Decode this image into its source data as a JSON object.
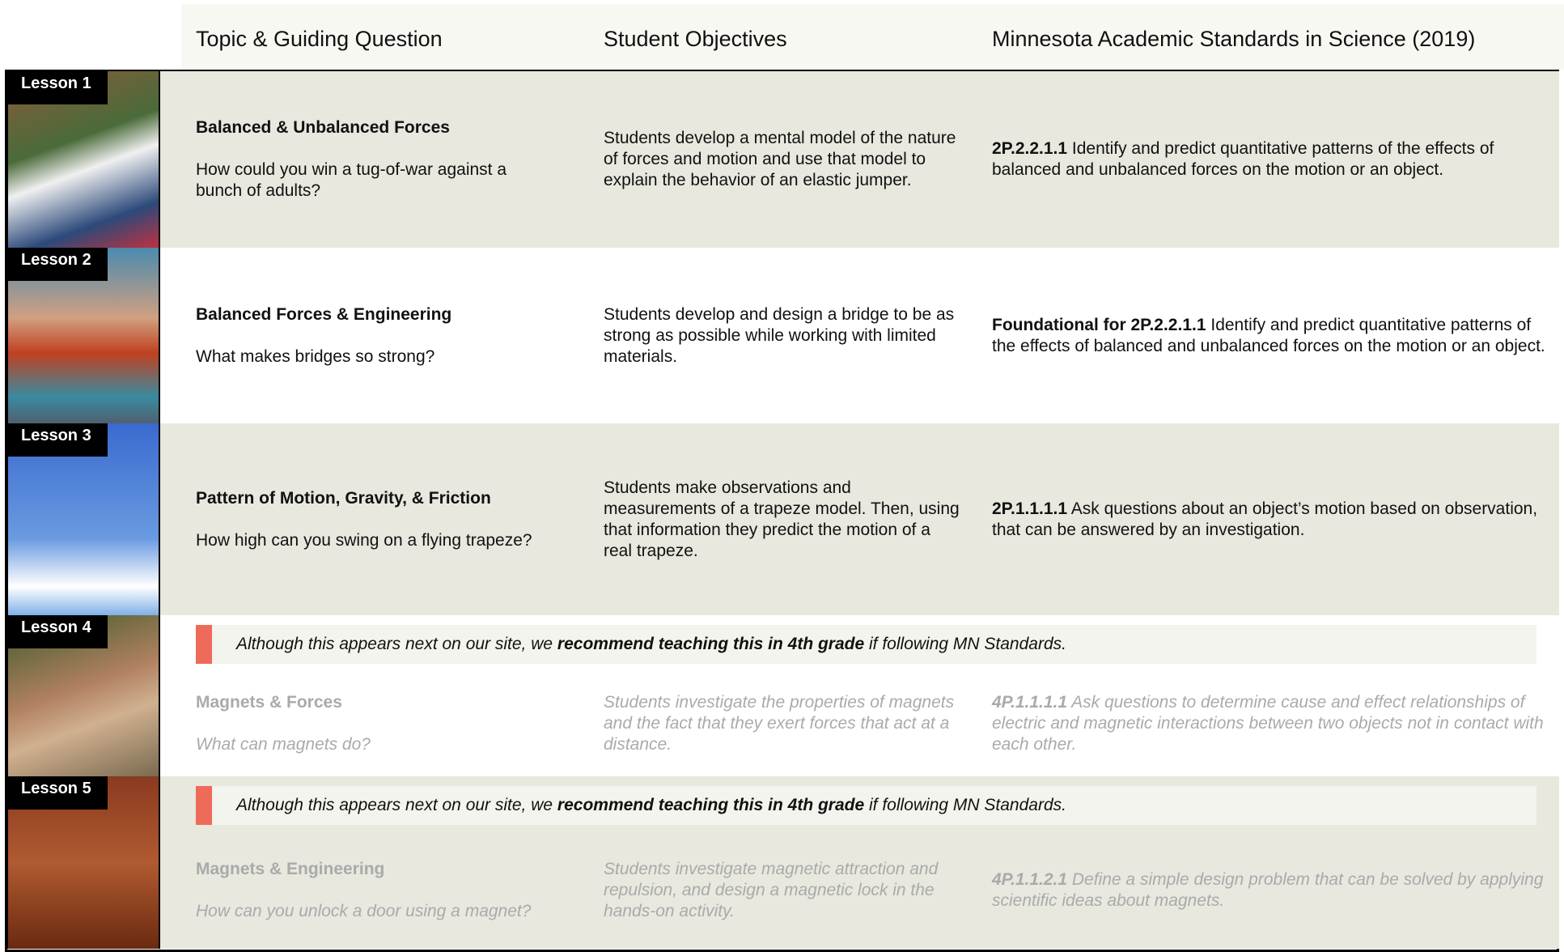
{
  "header": {
    "columns": [
      "Topic & Guiding Question",
      "Student Objectives",
      "Minnesota Academic Standards in Science (2019)"
    ]
  },
  "lessons": [
    {
      "label": "Lesson 1",
      "title": "Balanced & Unbalanced Forces",
      "question": "How could you win a tug-of-war against a bunch of adults?",
      "objective": "Students develop a mental model of the nature of forces and motion and use that model to explain the behavior of an elastic jumper.",
      "standard_code": "2P.2.2.1.1",
      "standard_text": "Identify and predict quantitative patterns of the effects of balanced and unbalanced forces on the motion or an object."
    },
    {
      "label": "Lesson 2",
      "title": "Balanced Forces & Engineering",
      "question": "What makes bridges so strong?",
      "objective": "Students develop and design a bridge to be as strong as possible while working with limited materials.",
      "standard_code": "Foundational for 2P.2.2.1.1",
      "standard_text": "Identify and predict quantitative patterns of the effects of balanced and unbalanced forces on the motion or an object."
    },
    {
      "label": "Lesson 3",
      "title": "Pattern of Motion, Gravity, & Friction",
      "question": "How high can you swing on a flying trapeze?",
      "objective": "Students make observations and measurements of a trapeze model. Then, using that information they predict the motion of a real trapeze.",
      "standard_code": "2P.1.1.1.1",
      "standard_text": "Ask questions about an object’s motion based on observation, that can be answered by an investigation."
    },
    {
      "label": "Lesson 4",
      "note": {
        "before": "Although this appears next on our site, we",
        "emphasis": "recommend teaching this in 4th grade",
        "after": "if following MN Standards."
      },
      "title": "Magnets & Forces",
      "question": "What can magnets do?",
      "objective": "Students investigate the properties of magnets and the fact that they exert forces that act at a distance.",
      "standard_code": "4P.1.1.1.1",
      "standard_text": "Ask questions to determine cause and effect relationships of electric and magnetic interactions between two objects not in contact with each other."
    },
    {
      "label": "Lesson 5",
      "note": {
        "before": "Although this appears next on our site, we",
        "emphasis": "recommend teaching this in 4th grade",
        "after": "if following MN Standards."
      },
      "title": "Magnets & Engineering",
      "question": "How can you unlock a door using a magnet?",
      "objective": "Students investigate magnetic attraction and repulsion, and design a magnetic lock in the hands-on activity.",
      "standard_code": "4P.1.1.2.1",
      "standard_text": "Define a simple design problem that can be solved by applying scientific ideas about magnets."
    }
  ]
}
